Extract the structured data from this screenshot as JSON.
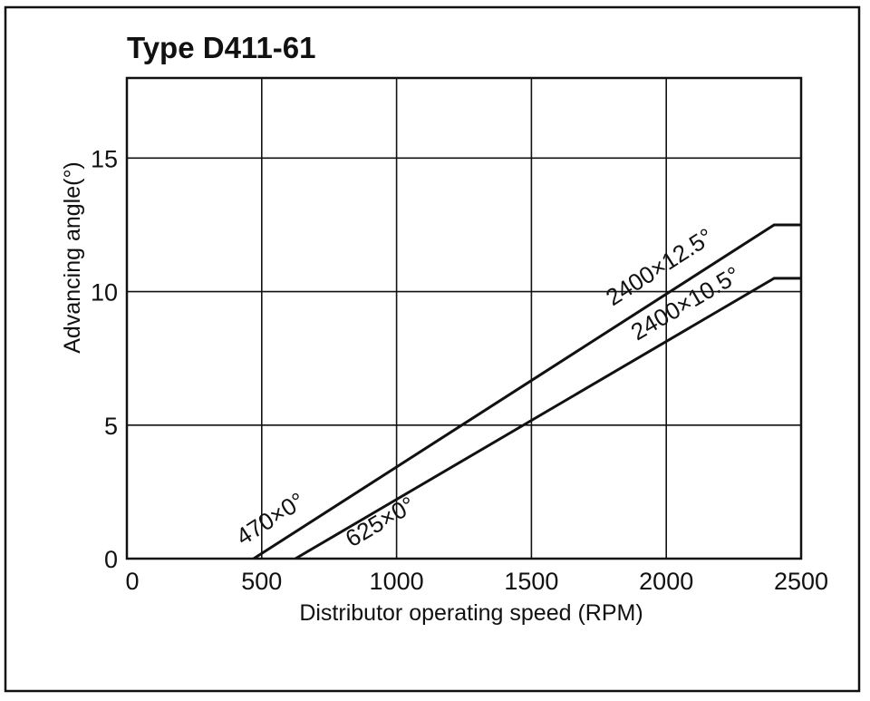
{
  "chart_data": {
    "type": "line",
    "title": "Type D411-61",
    "xlabel": "Distributor operating speed (RPM)",
    "ylabel": "Advancing angle(°)",
    "xlim": [
      0,
      2500
    ],
    "ylim": [
      0,
      18
    ],
    "x_ticks": [
      0,
      500,
      1000,
      1500,
      2000,
      2500
    ],
    "y_ticks": [
      0,
      5,
      10,
      15
    ],
    "grid": true,
    "series": [
      {
        "x": [
          470,
          2400,
          2500
        ],
        "values": [
          0,
          12.5,
          12.5
        ]
      },
      {
        "x": [
          625,
          2400,
          2500
        ],
        "values": [
          0,
          10.5,
          10.5
        ]
      }
    ],
    "annotations": [
      {
        "text": "470×0°",
        "x": 470,
        "y": 0
      },
      {
        "text": "625×0°",
        "x": 625,
        "y": 0
      },
      {
        "text": "2400×12.5°",
        "x": 2400,
        "y": 12.5
      },
      {
        "text": "2400×10.5°",
        "x": 2400,
        "y": 10.5
      }
    ]
  }
}
